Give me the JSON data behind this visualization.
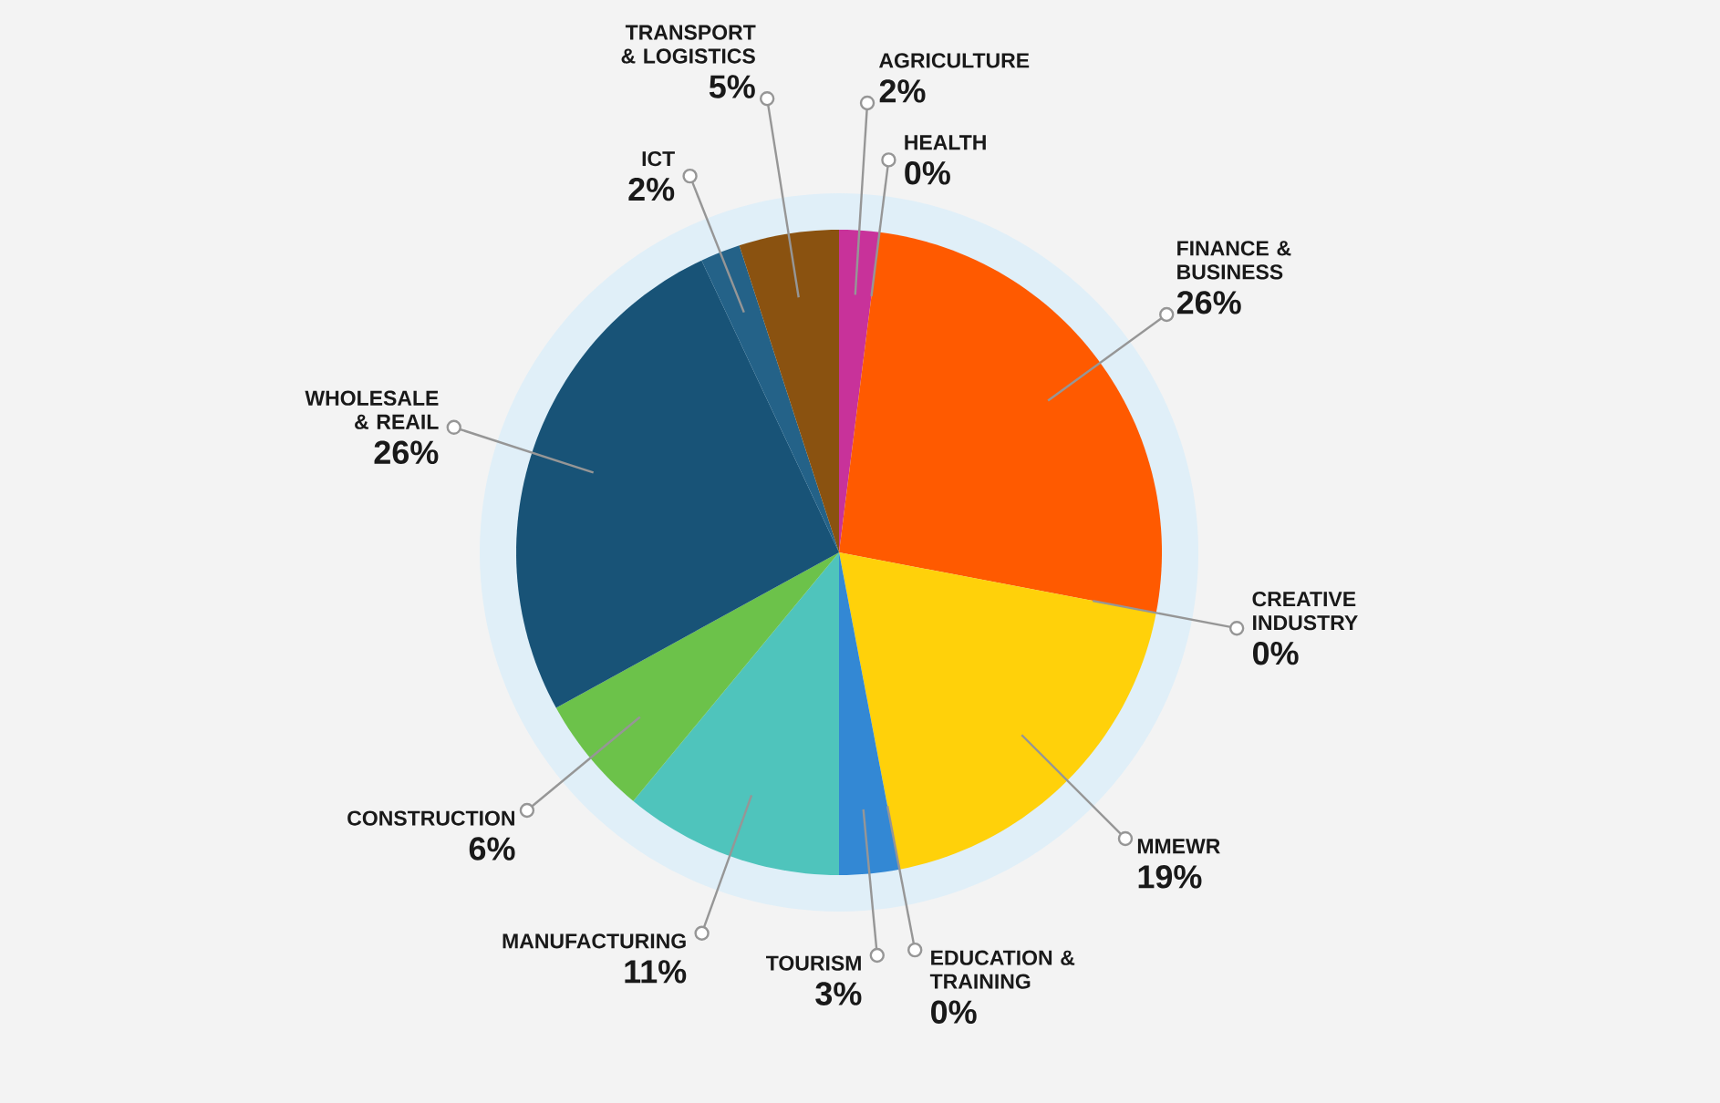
{
  "chart_data": {
    "type": "pie",
    "categories": [
      "AGRICULTURE",
      "HEALTH",
      "FINANCE & BUSINESS",
      "CREATIVE INDUSTRY",
      "MMEWR",
      "EDUCATION & TRAINING",
      "TOURISM",
      "MANUFACTURING",
      "CONSTRUCTION",
      "WHOLESALE & REAIL",
      "ICT",
      "TRANSPORT & LOGISTICS"
    ],
    "values": [
      2,
      0,
      26,
      0,
      19,
      0,
      3,
      11,
      6,
      26,
      2,
      5
    ],
    "value_labels": [
      "2%",
      "0%",
      "26%",
      "0%",
      "19%",
      "0%",
      "3%",
      "11%",
      "6%",
      "26%",
      "2%",
      "5%"
    ],
    "colors": [
      "#c8329a",
      null,
      "#ff5a00",
      null,
      "#ffd10a",
      null,
      "#3388d4",
      "#4fc4bc",
      "#6cc24a",
      "#185377",
      "#246288",
      "#8a5210"
    ]
  }
}
